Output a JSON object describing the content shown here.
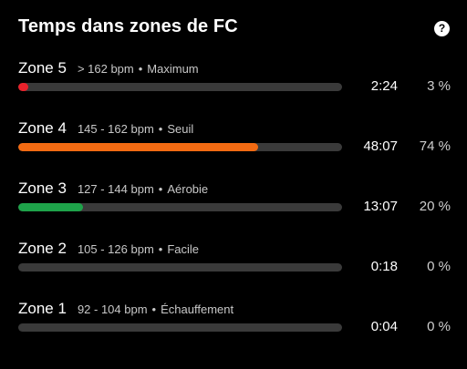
{
  "header": {
    "title": "Temps dans zones de FC",
    "help_icon": "question-icon",
    "help_glyph": "?"
  },
  "zones": [
    {
      "name": "Zone 5",
      "range": "> 162 bpm",
      "label": "Maximum",
      "time": "2:24",
      "percent": "3 %",
      "fill_fraction": 0.03,
      "color": "#e8222b"
    },
    {
      "name": "Zone 4",
      "range": "145 - 162 bpm",
      "label": "Seuil",
      "time": "48:07",
      "percent": "74 %",
      "fill_fraction": 0.74,
      "color": "#f26a12"
    },
    {
      "name": "Zone 3",
      "range": "127 - 144 bpm",
      "label": "Aérobie",
      "time": "13:07",
      "percent": "20 %",
      "fill_fraction": 0.2,
      "color": "#1ea34a"
    },
    {
      "name": "Zone 2",
      "range": "105 - 126 bpm",
      "label": "Facile",
      "time": "0:18",
      "percent": "0 %",
      "fill_fraction": 0,
      "color": "#2f7ad9"
    },
    {
      "name": "Zone 1",
      "range": "92 - 104 bpm",
      "label": "Échauffement",
      "time": "0:04",
      "percent": "0 %",
      "fill_fraction": 0,
      "color": "#9a9a9a"
    }
  ]
}
